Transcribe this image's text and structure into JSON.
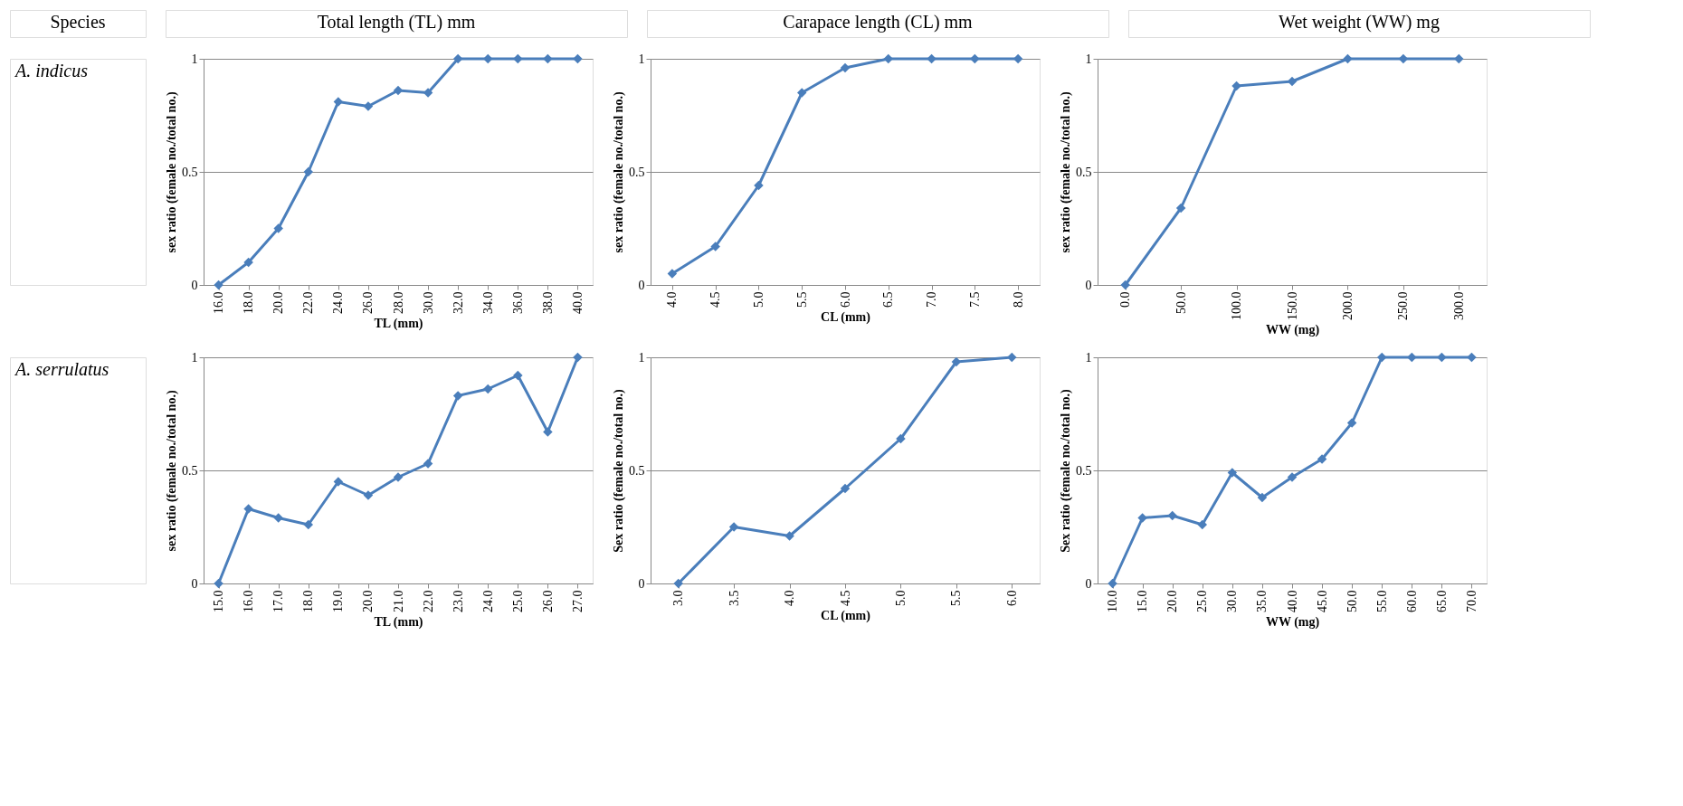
{
  "chart_data": [
    {
      "type": "other",
      "annotations": [
        "Species",
        "Total length (TL) mm",
        "Carapace length (CL) mm",
        "Wet weight (WW) mg",
        "A. indicus",
        "A. serrulatus"
      ]
    },
    {
      "type": "line",
      "xlabel": "TL (mm)",
      "ylabel": "sex ratio (female no./total no.)",
      "categories": [
        "16.0",
        "18.0",
        "20.0",
        "22.0",
        "24.0",
        "26.0",
        "28.0",
        "30.0",
        "32.0",
        "34.0",
        "36.0",
        "38.0",
        "40.0"
      ],
      "values": [
        0,
        0.1,
        0.25,
        0.5,
        0.81,
        0.79,
        0.86,
        0.85,
        1,
        1,
        1,
        1,
        1
      ],
      "color": "#4a7ebb",
      "ylim": [
        0,
        1
      ],
      "yticks": [
        0,
        0.5,
        1
      ],
      "grid": "y",
      "marker": "diamond",
      "line_style": "solid"
    },
    {
      "type": "line",
      "xlabel": "CL (mm)",
      "ylabel": "sex ratio (female no./total no.)",
      "categories": [
        "4.0",
        "4.5",
        "5.0",
        "5.5",
        "6.0",
        "6.5",
        "7.0",
        "7.5",
        "8.0"
      ],
      "values": [
        0.05,
        0.17,
        0.44,
        0.85,
        0.96,
        1,
        1,
        1,
        1
      ],
      "color": "#4a7ebb",
      "ylim": [
        0,
        1
      ],
      "yticks": [
        0,
        0.5,
        1
      ],
      "grid": "y",
      "marker": "diamond",
      "line_style": "solid"
    },
    {
      "type": "line",
      "xlabel": "WW (mg)",
      "ylabel": "sex ratio (female no./total no.)",
      "categories": [
        "0.0",
        "50.0",
        "100.0",
        "150.0",
        "200.0",
        "250.0",
        "300.0"
      ],
      "values": [
        0,
        0.34,
        0.88,
        0.9,
        1,
        1,
        1
      ],
      "color": "#4a7ebb",
      "ylim": [
        0,
        1
      ],
      "yticks": [
        0,
        0.5,
        1
      ],
      "grid": "y",
      "marker": "diamond",
      "line_style": "solid"
    },
    {
      "type": "line",
      "xlabel": "TL (mm)",
      "ylabel": "sex ratio (female no./total no.)",
      "categories": [
        "15.0",
        "16.0",
        "17.0",
        "18.0",
        "19.0",
        "20.0",
        "21.0",
        "22.0",
        "23.0",
        "24.0",
        "25.0",
        "26.0",
        "27.0"
      ],
      "values": [
        0,
        0.33,
        0.29,
        0.26,
        0.45,
        0.39,
        0.47,
        0.53,
        0.83,
        0.86,
        0.92,
        0.67,
        1
      ],
      "color": "#4a7ebb",
      "ylim": [
        0,
        1
      ],
      "yticks": [
        0,
        0.5,
        1
      ],
      "grid": "y",
      "marker": "diamond",
      "line_style": "solid"
    },
    {
      "type": "line",
      "xlabel": "CL (mm)",
      "ylabel": "Sex ratio (female no./total no.)",
      "categories": [
        "3.0",
        "3.5",
        "4.0",
        "4.5",
        "5.0",
        "5.5",
        "6.0"
      ],
      "values": [
        0,
        0.25,
        0.21,
        0.42,
        0.64,
        0.98,
        1
      ],
      "color": "#4a7ebb",
      "ylim": [
        0,
        1
      ],
      "yticks": [
        0,
        0.5,
        1
      ],
      "grid": "y",
      "marker": "diamond",
      "line_style": "solid"
    },
    {
      "type": "line",
      "xlabel": "WW (mg)",
      "ylabel": "Sex ratio (female no./total no.)",
      "categories": [
        "10.0",
        "15.0",
        "20.0",
        "25.0",
        "30.0",
        "35.0",
        "40.0",
        "45.0",
        "50.0",
        "55.0",
        "60.0",
        "65.0",
        "70.0"
      ],
      "values": [
        0,
        0.29,
        0.3,
        0.26,
        0.49,
        0.38,
        0.47,
        0.55,
        0.71,
        1,
        1,
        1,
        1
      ],
      "color": "#4a7ebb",
      "ylim": [
        0,
        1
      ],
      "yticks": [
        0,
        0.5,
        1
      ],
      "grid": "y",
      "marker": "diamond",
      "line_style": "solid"
    }
  ]
}
